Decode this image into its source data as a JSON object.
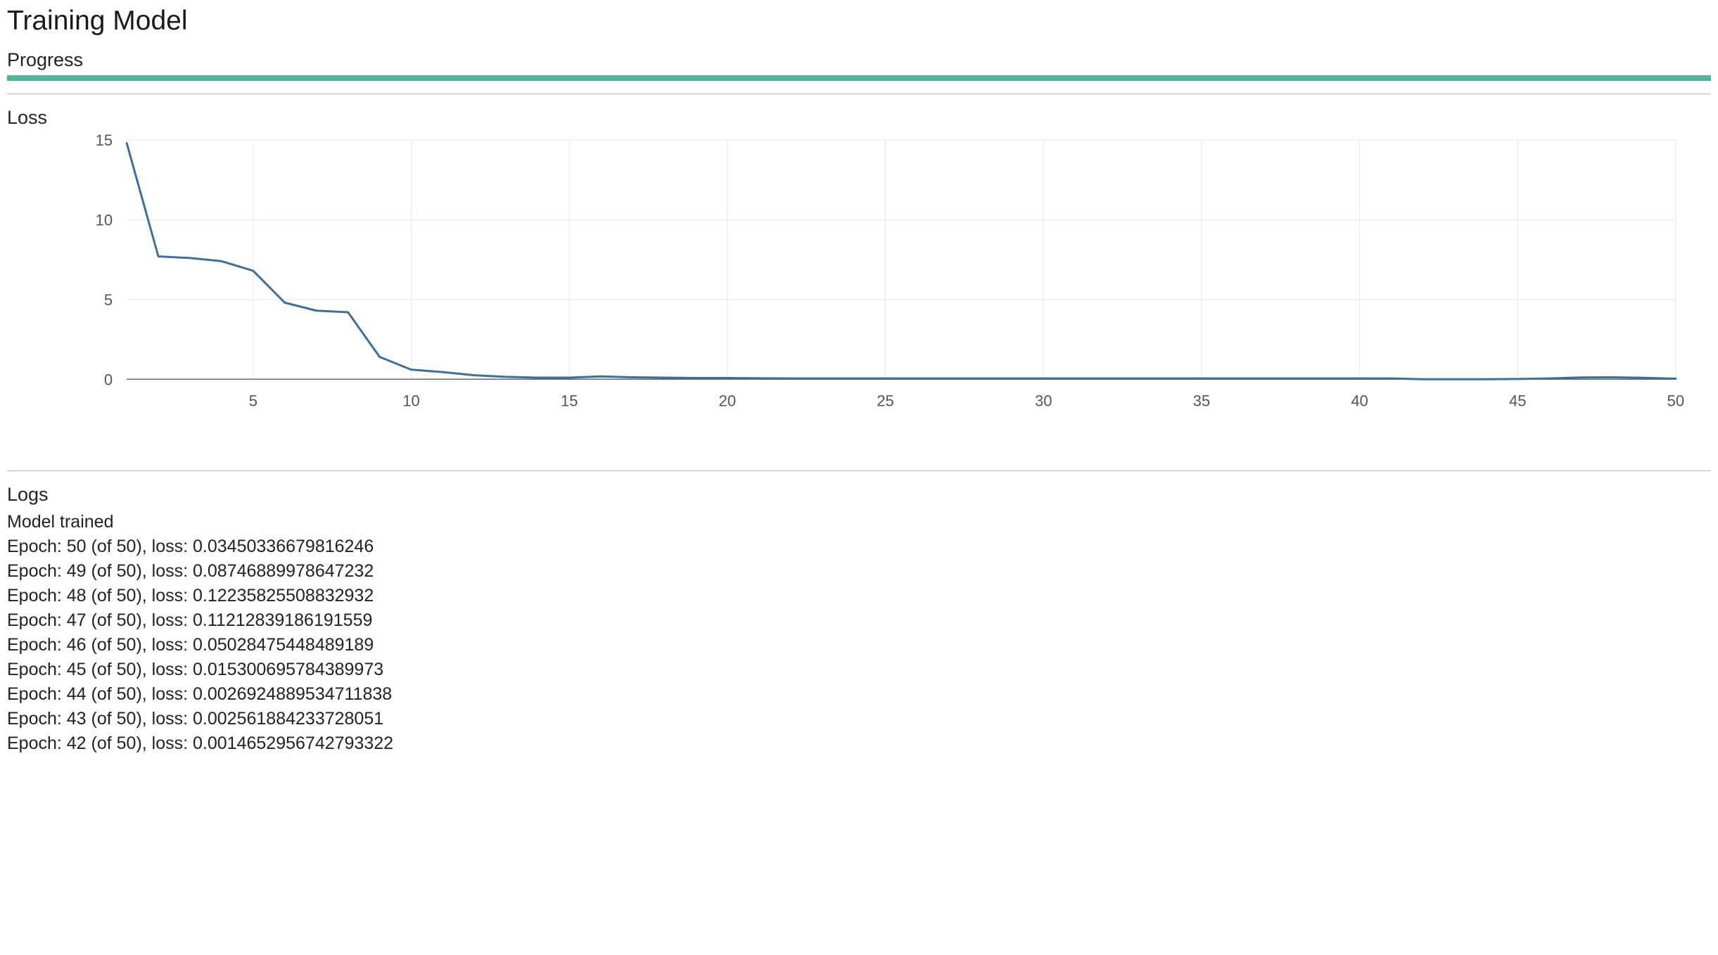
{
  "header": {
    "title": "Training Model"
  },
  "progress": {
    "title": "Progress",
    "value": 100,
    "max": 100,
    "bar_color": "#4db6a0"
  },
  "loss_chart": {
    "title": "Loss",
    "type": "line",
    "line_color": "#3b6fa0",
    "background_color": "#ffffff",
    "grid_color": "#e6e6e6",
    "axis_color": "#666666",
    "tick_font_size": 22,
    "tick_font_color": "#555555",
    "line_width": 3,
    "xlim": [
      1,
      50
    ],
    "ylim": [
      0,
      15
    ],
    "x_ticks": [
      5,
      10,
      15,
      20,
      25,
      30,
      35,
      40,
      45,
      50
    ],
    "y_ticks": [
      0,
      5,
      10,
      15
    ],
    "x_values": [
      1,
      2,
      3,
      4,
      5,
      6,
      7,
      8,
      9,
      10,
      11,
      12,
      13,
      14,
      15,
      16,
      17,
      18,
      19,
      20,
      21,
      22,
      23,
      24,
      25,
      26,
      27,
      28,
      29,
      30,
      31,
      32,
      33,
      34,
      35,
      36,
      37,
      38,
      39,
      40,
      41,
      42,
      43,
      44,
      45,
      46,
      47,
      48,
      49,
      50
    ],
    "y_values": [
      14.8,
      7.7,
      7.6,
      7.4,
      6.8,
      4.8,
      4.3,
      4.2,
      1.4,
      0.6,
      0.45,
      0.25,
      0.15,
      0.1,
      0.1,
      0.18,
      0.12,
      0.1,
      0.08,
      0.08,
      0.06,
      0.05,
      0.05,
      0.05,
      0.05,
      0.05,
      0.05,
      0.05,
      0.05,
      0.05,
      0.05,
      0.05,
      0.05,
      0.05,
      0.05,
      0.05,
      0.05,
      0.05,
      0.05,
      0.05,
      0.05,
      0.0015,
      0.0026,
      0.0027,
      0.0153,
      0.0503,
      0.1121,
      0.1224,
      0.0875,
      0.0345
    ]
  },
  "logs": {
    "title": "Logs",
    "lines": [
      "Model trained",
      "Epoch: 50 (of 50), loss: 0.03450336679816246",
      "Epoch: 49 (of 50), loss: 0.08746889978647232",
      "Epoch: 48 (of 50), loss: 0.12235825508832932",
      "Epoch: 47 (of 50), loss: 0.11212839186191559",
      "Epoch: 46 (of 50), loss: 0.05028475448489189",
      "Epoch: 45 (of 50), loss: 0.015300695784389973",
      "Epoch: 44 (of 50), loss: 0.0026924889534711838",
      "Epoch: 43 (of 50), loss: 0.002561884233728051",
      "Epoch: 42 (of 50), loss: 0.0014652956742793322"
    ]
  }
}
